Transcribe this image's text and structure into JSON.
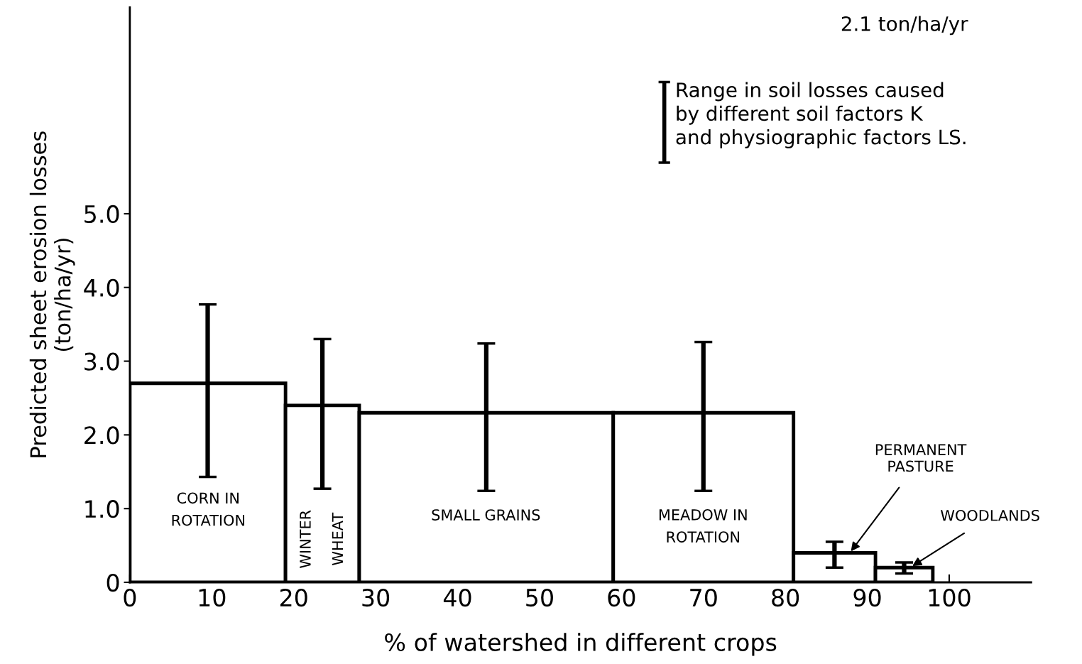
{
  "chart_data": {
    "type": "histogram",
    "xlabel": "% of watershed in different crops",
    "ylabel": "Predicted sheet erosion losses\n(ton/ha/yr)",
    "bins": [
      0,
      19,
      28,
      59,
      81,
      91,
      98
    ],
    "values": [
      2.7,
      2.4,
      2.3,
      2.3,
      0.4,
      0.2
    ],
    "errors": [
      [
        1.43,
        3.77
      ],
      [
        1.27,
        3.3
      ],
      [
        1.24,
        3.24
      ],
      [
        1.24,
        3.26
      ],
      [
        0.2,
        0.55
      ],
      [
        0.12,
        0.27
      ]
    ],
    "color": "#ffffff",
    "xlim": [
      0,
      110
    ],
    "xticks": [
      0,
      10,
      20,
      30,
      40,
      50,
      60,
      70,
      80,
      90,
      100
    ],
    "ylim": [
      0,
      7.8
    ],
    "yticks": [
      0,
      {
        "value": 1,
        "label": "1.0"
      },
      {
        "value": 2,
        "label": "2.0"
      },
      {
        "value": 3,
        "label": "3.0"
      },
      {
        "value": 4,
        "label": "4.0"
      },
      {
        "value": 5,
        "label": "5.0"
      }
    ],
    "grid": false,
    "legend": false,
    "annotations": [
      "2.1 ton/ha/yr",
      "Range in soil losses caused\nby different soil factors K\nand physiographic factors LS.",
      "CORN IN\nROTATION",
      "WINTER\nWHEAT",
      "SMALL GRAINS",
      "MEADOW IN\nROTATION",
      {
        "text": "PERMANENT\nPASTURE",
        "x": 88,
        "y": 0.42
      },
      {
        "text": "WOODLANDS",
        "x": 95.5,
        "y": 0.22
      }
    ]
  }
}
